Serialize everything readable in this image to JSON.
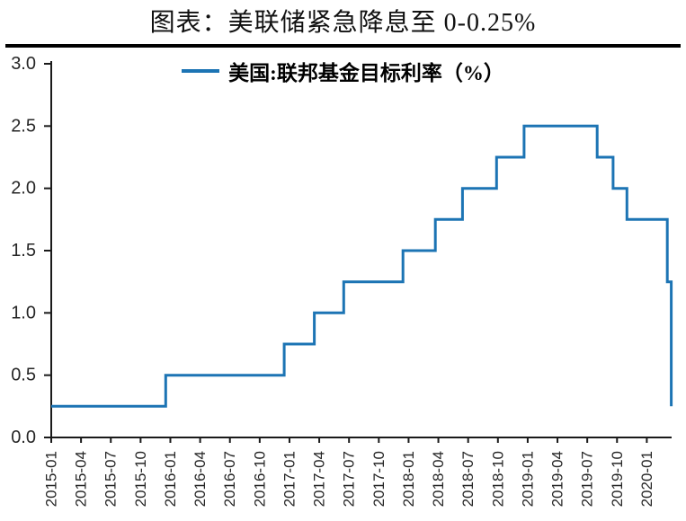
{
  "title": "图表：美联储紧急降息至 0-0.25%",
  "legend": {
    "label": "美国:联邦基金目标利率（%）"
  },
  "colors": {
    "line": "#1C74B4",
    "axis": "#1a1a1a",
    "tick_label": "#262626",
    "divider": "#000000"
  },
  "chart_data": {
    "type": "line",
    "style": "step-after",
    "title": "图表：美联储紧急降息至 0-0.25%",
    "series_name": "美国:联邦基金目标利率（%）",
    "unit": "%",
    "grid": false,
    "legend_position": "top-center",
    "ylim": [
      0.0,
      3.0
    ],
    "y_tick_values": [
      0.0,
      0.5,
      1.0,
      1.5,
      2.0,
      2.5,
      3.0
    ],
    "y_tick_labels": [
      "0.0",
      "0.5",
      "1.0",
      "1.5",
      "2.0",
      "2.5",
      "3.0"
    ],
    "x_tick_labels": [
      "2015-01",
      "2015-04",
      "2015-07",
      "2015-10",
      "2016-01",
      "2016-04",
      "2016-07",
      "2016-10",
      "2017-01",
      "2017-04",
      "2017-07",
      "2017-10",
      "2018-01",
      "2018-04",
      "2018-07",
      "2018-10",
      "2019-01",
      "2019-04",
      "2019-07",
      "2019-10",
      "2020-01"
    ],
    "x_tick_interval_months": 3,
    "x_start": "2015-01",
    "x_domain_months": [
      0,
      62.5
    ],
    "points": [
      {
        "date": "2015-01-01",
        "value": 0.25
      },
      {
        "date": "2015-12-17",
        "value": 0.5
      },
      {
        "date": "2016-12-15",
        "value": 0.75
      },
      {
        "date": "2017-03-16",
        "value": 1.0
      },
      {
        "date": "2017-06-15",
        "value": 1.25
      },
      {
        "date": "2017-12-14",
        "value": 1.5
      },
      {
        "date": "2018-03-22",
        "value": 1.75
      },
      {
        "date": "2018-06-14",
        "value": 2.0
      },
      {
        "date": "2018-09-27",
        "value": 2.25
      },
      {
        "date": "2018-12-20",
        "value": 2.5
      },
      {
        "date": "2019-08-01",
        "value": 2.25
      },
      {
        "date": "2019-09-19",
        "value": 2.0
      },
      {
        "date": "2019-11-01",
        "value": 1.75
      },
      {
        "date": "2020-03-03",
        "value": 1.25
      },
      {
        "date": "2020-03-15",
        "value": 0.25
      }
    ]
  }
}
